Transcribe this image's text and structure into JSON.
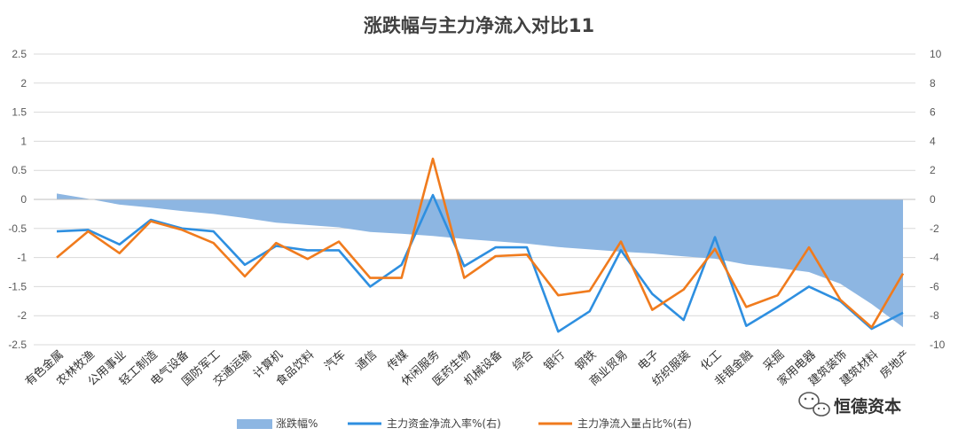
{
  "chart_data": {
    "type": "line",
    "title": "涨跌幅与主力净流入对比11",
    "categories": [
      "有色金属",
      "农林牧渔",
      "公用事业",
      "轻工制造",
      "电气设备",
      "国防军工",
      "交通运输",
      "计算机",
      "食品饮料",
      "汽车",
      "通信",
      "传媒",
      "休闲服务",
      "医药生物",
      "机械设备",
      "综合",
      "银行",
      "钢铁",
      "商业贸易",
      "电子",
      "纺织服装",
      "化工",
      "非银金融",
      "采掘",
      "家用电器",
      "建筑装饰",
      "建筑材料",
      "房地产"
    ],
    "y_left": {
      "ylim": [
        -2.5,
        2.5
      ],
      "ticks": [
        "2.5",
        "2",
        "1.5",
        "1",
        "0.5",
        "0",
        "-0.5",
        "-1",
        "-1.5",
        "-2",
        "-2.5"
      ]
    },
    "y_right": {
      "ylim": [
        -10,
        10
      ],
      "ticks": [
        "10",
        "8",
        "6",
        "4",
        "2",
        "0",
        "-2",
        "-4",
        "-6",
        "-8",
        "-10"
      ]
    },
    "grid": true,
    "legend_position": "bottom",
    "series": [
      {
        "name": "涨跌幅%",
        "type": "area",
        "axis": "left",
        "color": "#8DB6E2",
        "values": [
          0.1,
          0.01,
          -0.09,
          -0.14,
          -0.2,
          -0.25,
          -0.32,
          -0.4,
          -0.44,
          -0.48,
          -0.56,
          -0.59,
          -0.63,
          -0.68,
          -0.72,
          -0.76,
          -0.82,
          -0.86,
          -0.9,
          -0.93,
          -0.98,
          -1.02,
          -1.12,
          -1.18,
          -1.25,
          -1.45,
          -1.8,
          -2.2
        ]
      },
      {
        "name": "主力资金净流入率%(右)",
        "type": "line",
        "axis": "right",
        "color": "#2E8FE0",
        "values": [
          -2.2,
          -2.1,
          -3.1,
          -1.4,
          -2.0,
          -2.2,
          -4.5,
          -3.2,
          -3.5,
          -3.5,
          -6.0,
          -4.5,
          0.3,
          -4.6,
          -3.3,
          -3.3,
          -9.1,
          -7.7,
          -3.5,
          -6.5,
          -8.3,
          -2.6,
          -8.7,
          -7.4,
          -6.0,
          -7.0,
          -8.9,
          -7.8
        ]
      },
      {
        "name": "主力净流入量占比%(右)",
        "type": "line",
        "axis": "right",
        "color": "#F07B1D",
        "values": [
          -4.0,
          -2.2,
          -3.7,
          -1.5,
          -2.1,
          -3.0,
          -5.3,
          -3.0,
          -4.1,
          -2.9,
          -5.4,
          -5.4,
          2.8,
          -5.4,
          -3.9,
          -3.8,
          -6.6,
          -6.3,
          -2.9,
          -7.6,
          -6.2,
          -3.4,
          -7.4,
          -6.6,
          -3.3,
          -6.9,
          -8.8,
          -5.1
        ]
      }
    ]
  },
  "watermark": {
    "text": "恒德资本",
    "icon": "wechat-icon"
  }
}
